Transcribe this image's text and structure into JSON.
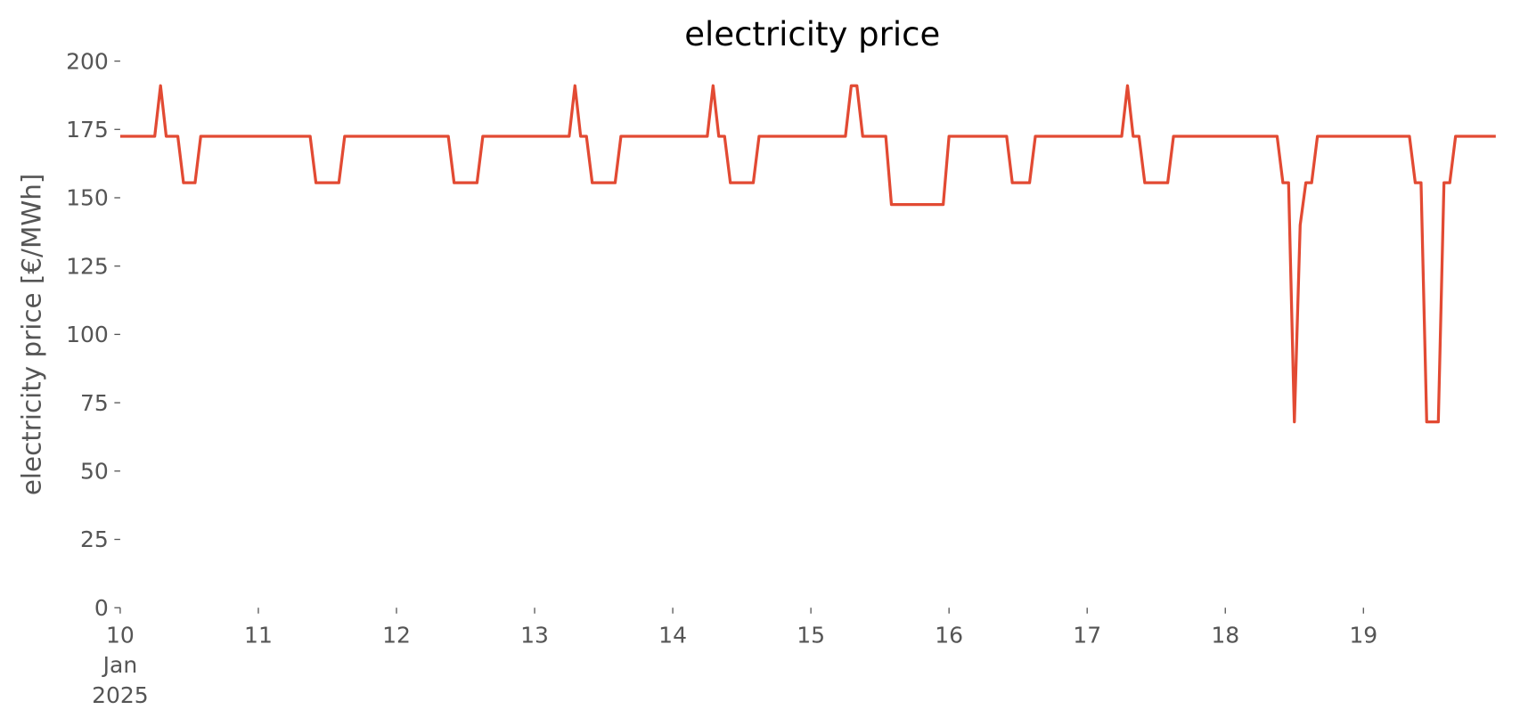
{
  "chart_data": {
    "type": "line",
    "title": "electricity price",
    "y_label": "electricity price [€/MWh]",
    "xlim": [
      10,
      20
    ],
    "xticks": [
      {
        "value": 10,
        "label": "10\nJan\n2025"
      },
      11,
      12,
      13,
      14,
      15,
      16,
      17,
      18,
      19
    ],
    "ylim": [
      0,
      200
    ],
    "yticks": [
      0,
      25,
      50,
      75,
      100,
      125,
      150,
      175,
      200
    ],
    "grid": false,
    "series": [
      {
        "name": "electricity price",
        "color": "#E24A33",
        "x": [
          10.0,
          10.25,
          10.292,
          10.333,
          10.417,
          10.458,
          10.542,
          10.583,
          11.375,
          11.417,
          11.583,
          11.625,
          12.375,
          12.417,
          12.583,
          12.625,
          13.25,
          13.292,
          13.333,
          13.375,
          13.417,
          13.583,
          13.625,
          14.25,
          14.292,
          14.333,
          14.375,
          14.417,
          14.583,
          14.625,
          15.25,
          15.292,
          15.333,
          15.375,
          15.542,
          15.583,
          15.958,
          16.0,
          16.417,
          16.458,
          16.583,
          16.625,
          17.25,
          17.292,
          17.333,
          17.375,
          17.417,
          17.583,
          17.625,
          18.375,
          18.417,
          18.458,
          18.5,
          18.542,
          18.583,
          18.625,
          18.667,
          19.333,
          19.375,
          19.417,
          19.458,
          19.542,
          19.583,
          19.625,
          19.667,
          19.958
        ],
        "values": [
          172.5,
          172.5,
          191,
          172.5,
          172.5,
          155.5,
          155.5,
          172.5,
          172.5,
          155.5,
          155.5,
          172.5,
          172.5,
          155.5,
          155.5,
          172.5,
          172.5,
          191,
          172.5,
          172.5,
          155.5,
          155.5,
          172.5,
          172.5,
          191,
          172.5,
          172.5,
          155.5,
          155.5,
          172.5,
          172.5,
          191,
          191,
          172.5,
          172.5,
          147.5,
          147.5,
          172.5,
          172.5,
          155.5,
          155.5,
          172.5,
          172.5,
          191,
          172.5,
          172.5,
          155.5,
          155.5,
          172.5,
          172.5,
          155.5,
          155.5,
          68,
          140,
          155.5,
          155.5,
          172.5,
          172.5,
          155.5,
          155.5,
          68,
          68,
          155.5,
          155.5,
          172.5,
          172.5
        ]
      }
    ]
  }
}
